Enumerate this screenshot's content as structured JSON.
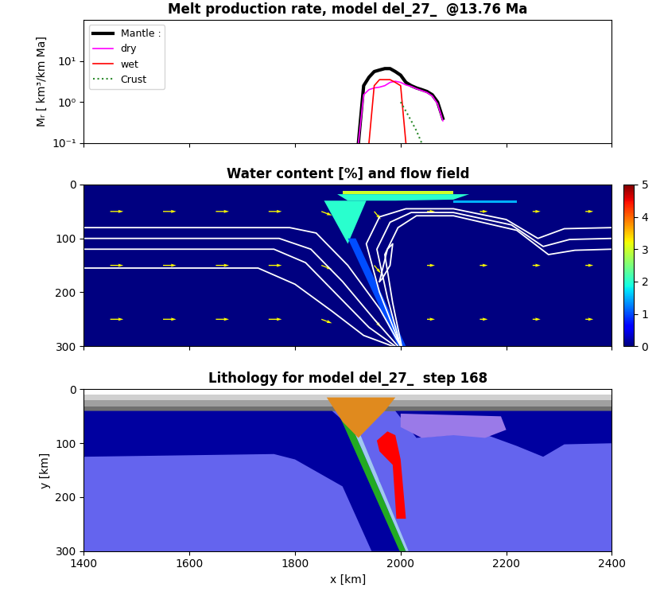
{
  "chart_data": [
    {
      "type": "line",
      "title": "Melt production rate, model del_27_  @13.76 Ma",
      "y_label": "Mᵣ [ km³/km Ma]",
      "log": "y",
      "legend": "upper left",
      "tick_labels": "y",
      "xlim": [
        1400,
        2400
      ],
      "xticks": [
        1400,
        1600,
        1800,
        2000,
        2200,
        2400
      ],
      "ylim": [
        0.1,
        100
      ],
      "yticks": [
        {
          "value": 0.1,
          "label": "10⁻¹"
        },
        {
          "value": 1,
          "label": "10⁰"
        },
        {
          "value": 10,
          "label": "10¹"
        }
      ],
      "x": [
        1910,
        1920,
        1930,
        1940,
        1950,
        1960,
        1970,
        1980,
        1990,
        2000,
        2010,
        2020,
        2030,
        2040,
        2050,
        2060,
        2070,
        2080,
        2090
      ],
      "series": [
        {
          "name": "Mantle :",
          "color": "#000000",
          "line_style": "solid",
          "values": [
            null,
            0.1,
            2.5,
            4,
            5.5,
            6,
            6.5,
            6.5,
            5.5,
            4.5,
            3,
            2.5,
            2.2,
            2,
            1.8,
            1.5,
            1,
            0.4,
            null
          ]
        },
        {
          "name": "dry",
          "color": "#ff00ff",
          "line_style": "solid",
          "values": [
            null,
            0.1,
            1.5,
            2,
            2.2,
            2.3,
            2.5,
            3,
            3.2,
            3,
            2.6,
            2.4,
            2.1,
            1.9,
            1.7,
            1.4,
            0.9,
            0.35,
            null
          ]
        },
        {
          "name": "wet",
          "color": "#ff0000",
          "line_style": "solid",
          "values": [
            null,
            null,
            null,
            0.1,
            2.5,
            3.5,
            3.5,
            3.5,
            3,
            2.5,
            0.1,
            null,
            null,
            null,
            null,
            null,
            null,
            null,
            null
          ]
        },
        {
          "name": "Crust",
          "color": "#2e8b2e",
          "line_style": "dotted",
          "values": [
            null,
            null,
            null,
            null,
            null,
            null,
            null,
            null,
            null,
            1,
            0.6,
            0.35,
            0.2,
            0.1,
            null,
            null,
            null,
            null,
            null
          ]
        }
      ]
    },
    {
      "type": "field",
      "title": "Water content [%] and flow field",
      "tick_labels": "y",
      "xlim": [
        1400,
        2400
      ],
      "xticks": [
        1400,
        1600,
        1800,
        2000,
        2200,
        2400
      ],
      "ylim": [
        300,
        0
      ],
      "yticks": [
        0,
        100,
        200,
        300
      ],
      "background": 0,
      "colorbar": {
        "range": [
          0,
          5
        ],
        "ticks": [
          0,
          1,
          2,
          3,
          4,
          5
        ]
      },
      "water_regions": [
        {
          "value": 2,
          "x": [
            1880,
            2130,
            2100,
            1990,
            1900
          ],
          "y": [
            18,
            18,
            28,
            30,
            30
          ]
        },
        {
          "value": 3,
          "x": [
            1890,
            2100,
            2100,
            1890
          ],
          "y": [
            12,
            12,
            18,
            18
          ]
        },
        {
          "value": 2,
          "x": [
            1855,
            1935,
            1900
          ],
          "y": [
            30,
            30,
            110
          ]
        },
        {
          "value": 1,
          "x": [
            1900,
            1915,
            2010,
            1995
          ],
          "y": [
            100,
            100,
            300,
            300
          ]
        },
        {
          "value": 1.5,
          "x": [
            2100,
            2220,
            2220,
            2100
          ],
          "y": [
            30,
            30,
            34,
            34
          ]
        }
      ],
      "streamlines": [
        {
          "x": [
            1400,
            1790,
            1840,
            1900,
            1960,
            2000
          ],
          "y": [
            80,
            80,
            90,
            150,
            230,
            300
          ]
        },
        {
          "x": [
            1400,
            1770,
            1830,
            1890,
            1950,
            1995
          ],
          "y": [
            100,
            100,
            120,
            180,
            250,
            300
          ]
        },
        {
          "x": [
            1400,
            1760,
            1820,
            1880,
            1940,
            1990
          ],
          "y": [
            120,
            120,
            145,
            205,
            265,
            300
          ]
        },
        {
          "x": [
            1400,
            1730,
            1800,
            1870,
            1930,
            1985
          ],
          "y": [
            155,
            155,
            185,
            235,
            280,
            300
          ]
        },
        {
          "x": [
            2400,
            2310,
            2260,
            2200,
            2100,
            2010,
            1960,
            1935,
            1960,
            2000
          ],
          "y": [
            80,
            82,
            100,
            65,
            45,
            45,
            60,
            110,
            200,
            300
          ]
        },
        {
          "x": [
            2400,
            2320,
            2270,
            2210,
            2100,
            2020,
            1980,
            1955,
            1975,
            2000
          ],
          "y": [
            100,
            102,
            115,
            75,
            52,
            52,
            70,
            120,
            210,
            300
          ]
        },
        {
          "x": [
            2400,
            2330,
            2280,
            2220,
            2100,
            2030,
            1995,
            1970,
            1985,
            2002
          ],
          "y": [
            120,
            122,
            130,
            85,
            58,
            58,
            80,
            130,
            220,
            300
          ]
        },
        {
          "x": [
            1960,
            1975,
            1985,
            1980,
            1965,
            1960
          ],
          "y": [
            180,
            120,
            110,
            150,
            175,
            180
          ]
        }
      ],
      "flow": {
        "x": [
          1450,
          1550,
          1650,
          1750,
          1850,
          1950,
          2050,
          2150,
          2250,
          2350
        ],
        "y": [
          50,
          150,
          250
        ],
        "u": [
          [
            1,
            1,
            1,
            1,
            0.8,
            0.5,
            0.6,
            0.6,
            0.6,
            0.6
          ],
          [
            1,
            1,
            1,
            1,
            0.8,
            0.5,
            0.6,
            0.6,
            0.6,
            0.6
          ],
          [
            1,
            1,
            1,
            1,
            0.8,
            0.5,
            0.6,
            0.6,
            0.6,
            0.6
          ]
        ],
        "v": [
          [
            0,
            0,
            0,
            0,
            0.3,
            0.6,
            0,
            0,
            0,
            0
          ],
          [
            0,
            0,
            0,
            0,
            0.3,
            0.6,
            0,
            0,
            0,
            0
          ],
          [
            0,
            0,
            0,
            0,
            0.3,
            0.6,
            0,
            0,
            0,
            0
          ]
        ]
      }
    },
    {
      "type": "area",
      "title": "Lithology for model del_27_  step 168",
      "x_label": "x [km]",
      "y_label": "y [km]",
      "xlim": [
        1400,
        2400
      ],
      "xticks": [
        1400,
        1600,
        1800,
        2000,
        2200,
        2400
      ],
      "ylim": [
        300,
        0
      ],
      "yticks": [
        0,
        100,
        200,
        300
      ],
      "regions": [
        {
          "color": "#6464ee",
          "x": [
            1400,
            2400,
            2400,
            1400
          ],
          "y": [
            0,
            0,
            300,
            300
          ]
        },
        {
          "color": "#ffffff",
          "x": [
            1400,
            2400,
            2400,
            1400
          ],
          "y": [
            0,
            0,
            10,
            10
          ]
        },
        {
          "color": "#d0d0d0",
          "x": [
            1400,
            2400,
            2400,
            1400
          ],
          "y": [
            10,
            10,
            20,
            20
          ]
        },
        {
          "color": "#a0a0a0",
          "x": [
            1400,
            2400,
            2400,
            1400
          ],
          "y": [
            20,
            20,
            32,
            32
          ]
        },
        {
          "color": "#707070",
          "x": [
            1400,
            2400,
            2400,
            1400
          ],
          "y": [
            32,
            32,
            40,
            40
          ]
        },
        {
          "color": "#0000a0",
          "x": [
            1400,
            1870,
            1905,
            1960,
            2000,
            1945,
            1890,
            1800,
            1760,
            1400
          ],
          "y": [
            40,
            40,
            70,
            170,
            300,
            300,
            180,
            130,
            120,
            125
          ]
        },
        {
          "color": "#0000a0",
          "x": [
            1990,
            2400,
            2400,
            2310,
            2270,
            2220,
            2150,
            2030
          ],
          "y": [
            40,
            40,
            100,
            102,
            125,
            105,
            80,
            90
          ]
        },
        {
          "color": "#9a7ae8",
          "x": [
            2000,
            2190,
            2200,
            2160,
            2100,
            2040,
            2000
          ],
          "y": [
            45,
            50,
            75,
            90,
            85,
            90,
            70
          ]
        },
        {
          "color": "#22aa22",
          "x": [
            1880,
            1895,
            2010,
            1998
          ],
          "y": [
            40,
            40,
            300,
            300
          ]
        },
        {
          "color": "#a0c8f0",
          "x": [
            1895,
            1905,
            2015,
            2010
          ],
          "y": [
            40,
            40,
            300,
            300
          ]
        },
        {
          "color": "#e08a1e",
          "x": [
            1860,
            1990,
            1970,
            1920,
            1890
          ],
          "y": [
            15,
            15,
            40,
            90,
            60
          ]
        },
        {
          "color": "#ff0000",
          "x": [
            1955,
            1975,
            1990,
            2000,
            2010,
            1992,
            1985,
            1960
          ],
          "y": [
            95,
            78,
            85,
            130,
            240,
            240,
            140,
            115
          ]
        }
      ]
    }
  ]
}
